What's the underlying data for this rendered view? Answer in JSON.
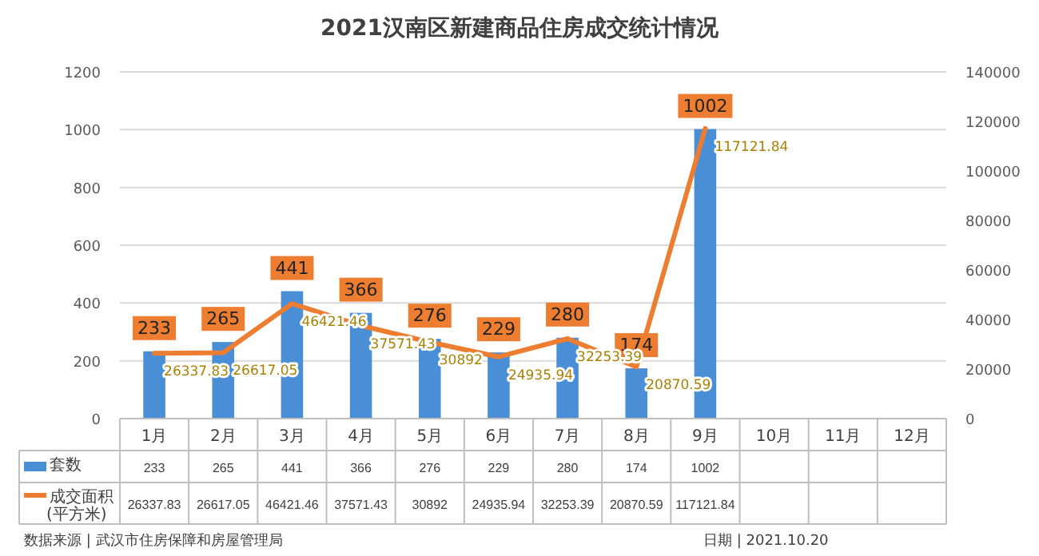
{
  "chart_data": {
    "type": "bar",
    "title": "2021汉南区新建商品住房成交统计情况",
    "categories": [
      "1月",
      "2月",
      "3月",
      "4月",
      "5月",
      "6月",
      "7月",
      "8月",
      "9月",
      "10月",
      "11月",
      "12月"
    ],
    "series": [
      {
        "name": "套数",
        "type": "bar",
        "color": "#4a8fd6",
        "values": [
          233,
          265,
          441,
          366,
          276,
          229,
          280,
          174,
          1002,
          null,
          null,
          null
        ]
      },
      {
        "name": "成交面积(平方米)",
        "type": "line",
        "axis": "y2",
        "color": "#ed7d31",
        "values": [
          26337.83,
          26617.05,
          46421.46,
          37571.43,
          30892,
          24935.94,
          32253.39,
          20870.59,
          117121.84,
          null,
          null,
          null
        ]
      }
    ],
    "ylim": [
      0,
      1200
    ],
    "yticks": [
      0,
      200,
      400,
      600,
      800,
      1000,
      1200
    ],
    "y2lim": [
      0,
      140000
    ],
    "y2ticks": [
      0,
      20000,
      40000,
      60000,
      80000,
      100000,
      120000,
      140000
    ],
    "grid": "y",
    "legend": "bottom left",
    "data_labels": true,
    "annotations": [
      "数据来源 | 武汉市住房保障和房屋管理局",
      "日期 | 2021.10.20",
      {
        "text": "233",
        "x": "1月",
        "y": 233
      },
      {
        "text": "265",
        "x": "2月",
        "y": 265
      },
      {
        "text": "441",
        "x": "3月",
        "y": 441
      },
      {
        "text": "366",
        "x": "4月",
        "y": 366
      },
      {
        "text": "276",
        "x": "5月",
        "y": 276
      },
      {
        "text": "229",
        "x": "6月",
        "y": 229
      },
      {
        "text": "280",
        "x": "7月",
        "y": 280
      },
      {
        "text": "174",
        "x": "8月",
        "y": 174
      },
      {
        "text": "1002",
        "x": "9月",
        "y": 1002
      },
      "26337.83",
      "26617.05",
      "46421.46",
      "37571.43",
      "30892",
      "24935.94",
      "32253.39",
      "20870.59",
      "117121.84"
    ]
  }
}
